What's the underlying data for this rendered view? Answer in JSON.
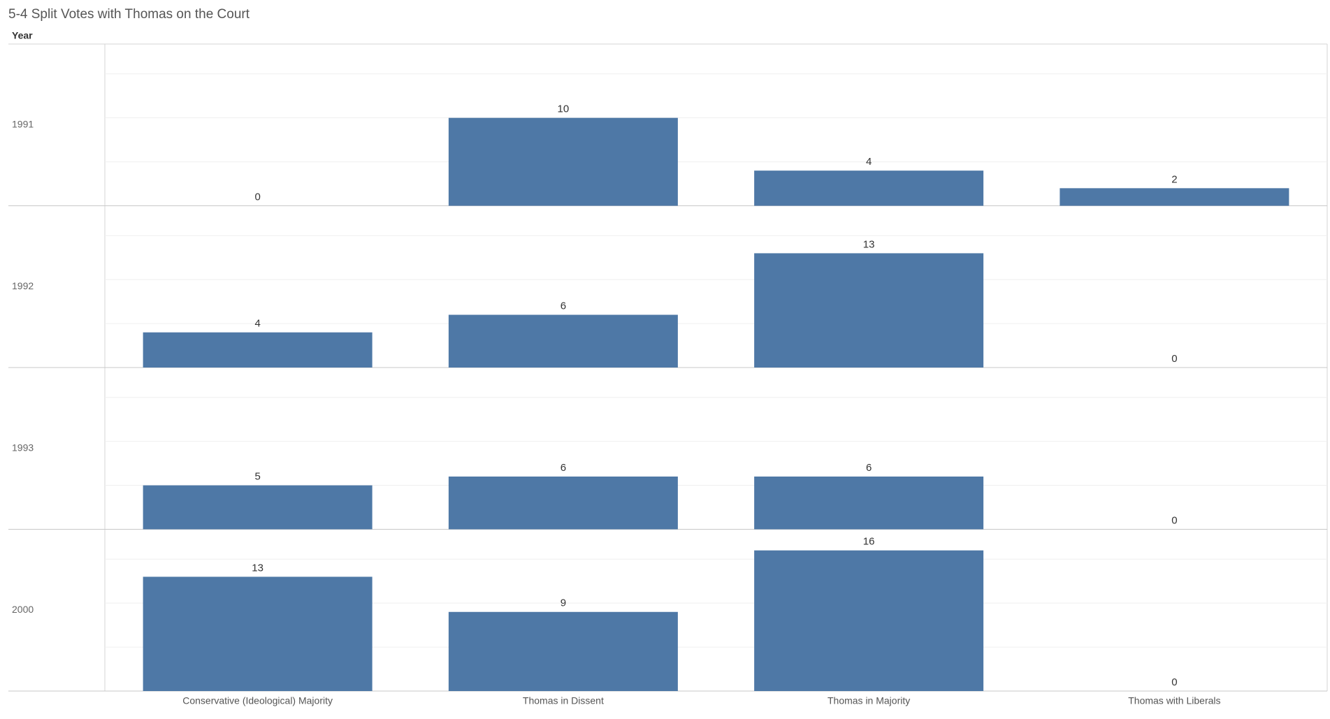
{
  "chart_data": {
    "type": "bar",
    "title": "5-4 Split Votes with Thomas on the Court",
    "row_axis_title": "Year",
    "categories": [
      "Conservative (Ideological) Majority",
      "Thomas in Dissent",
      "Thomas in Majority",
      "Thomas with Liberals"
    ],
    "panels": [
      {
        "label": "1991",
        "values": [
          0,
          10,
          4,
          2
        ]
      },
      {
        "label": "1992",
        "values": [
          4,
          6,
          13,
          0
        ]
      },
      {
        "label": "1993",
        "values": [
          5,
          6,
          6,
          0
        ]
      },
      {
        "label": "2000",
        "values": [
          13,
          9,
          16,
          0
        ]
      }
    ],
    "color": "#4e78a6",
    "ylim": [
      0,
      18.4
    ],
    "yticks": [
      0,
      5,
      10,
      15
    ],
    "grid": true
  }
}
